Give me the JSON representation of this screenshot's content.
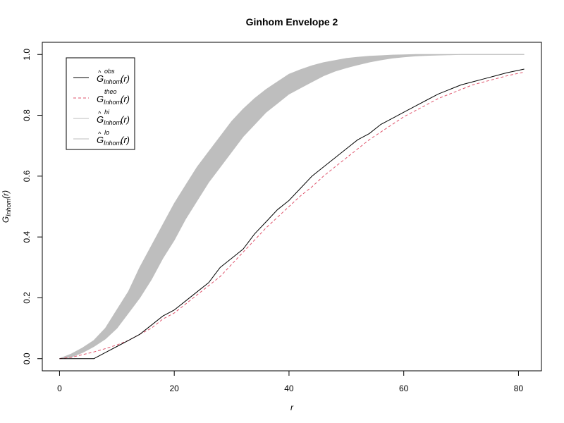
{
  "chart_data": {
    "type": "line",
    "title": "Ginhom Envelope 2",
    "xlabel": "r",
    "ylabel": {
      "base": "G",
      "sub": "Inhom",
      "arg": "(r)"
    },
    "xlim": [
      -3,
      84
    ],
    "ylim": [
      -0.04,
      1.04
    ],
    "x_ticks": [
      0,
      20,
      40,
      60,
      80
    ],
    "x_tick_labels": [
      "0",
      "20",
      "40",
      "60",
      "80"
    ],
    "y_ticks": [
      0.0,
      0.2,
      0.4,
      0.6,
      0.8,
      1.0
    ],
    "y_tick_labels": [
      "0.0",
      "0.2",
      "0.4",
      "0.6",
      "0.8",
      "1.0"
    ],
    "grid": false,
    "legend_position": "top-left",
    "colors": {
      "obs": "#000000",
      "theo": "#DF536B",
      "envelope": "#BEBEBE"
    },
    "legend": [
      {
        "base": "G",
        "hat": true,
        "sup": "obs",
        "sub": "Inhom",
        "arg": "(r)",
        "color": "#000000",
        "dash": false
      },
      {
        "base": "G",
        "hat": false,
        "sup": "theo",
        "sub": "Inhom",
        "arg": "(r)",
        "color": "#DF536B",
        "dash": true
      },
      {
        "base": "G",
        "hat": true,
        "sup": "hi",
        "sub": "Inhom",
        "arg": "(r)",
        "color": "#BEBEBE",
        "dash": false
      },
      {
        "base": "G",
        "hat": true,
        "sup": "lo",
        "sub": "Inhom",
        "arg": "(r)",
        "color": "#BEBEBE",
        "dash": false
      }
    ],
    "x": [
      0,
      2,
      4,
      6,
      8,
      10,
      12,
      14,
      16,
      18,
      20,
      22,
      24,
      26,
      28,
      30,
      32,
      34,
      36,
      38,
      40,
      42,
      44,
      46,
      48,
      50,
      52,
      54,
      56,
      58,
      60,
      62,
      64,
      66,
      68,
      70,
      72,
      74,
      76,
      78,
      80,
      81
    ],
    "series": [
      {
        "key": "obs",
        "values": [
          0,
          0,
          0,
          0,
          0.02,
          0.04,
          0.06,
          0.08,
          0.11,
          0.14,
          0.16,
          0.19,
          0.22,
          0.25,
          0.3,
          0.33,
          0.36,
          0.41,
          0.45,
          0.49,
          0.52,
          0.56,
          0.6,
          0.63,
          0.66,
          0.69,
          0.72,
          0.74,
          0.77,
          0.79,
          0.81,
          0.83,
          0.85,
          0.87,
          0.885,
          0.9,
          0.91,
          0.92,
          0.93,
          0.94,
          0.948,
          0.952
        ]
      },
      {
        "key": "theo",
        "values": [
          0,
          0.004,
          0.013,
          0.022,
          0.033,
          0.045,
          0.06,
          0.08,
          0.1,
          0.13,
          0.15,
          0.18,
          0.21,
          0.24,
          0.27,
          0.31,
          0.35,
          0.39,
          0.43,
          0.465,
          0.5,
          0.535,
          0.565,
          0.6,
          0.63,
          0.66,
          0.69,
          0.72,
          0.745,
          0.77,
          0.795,
          0.815,
          0.835,
          0.855,
          0.87,
          0.885,
          0.9,
          0.91,
          0.92,
          0.93,
          0.938,
          0.942
        ]
      },
      {
        "key": "hi",
        "values": [
          0,
          0.015,
          0.035,
          0.06,
          0.1,
          0.16,
          0.22,
          0.3,
          0.37,
          0.44,
          0.51,
          0.57,
          0.63,
          0.68,
          0.73,
          0.78,
          0.82,
          0.855,
          0.885,
          0.91,
          0.935,
          0.95,
          0.963,
          0.973,
          0.98,
          0.987,
          0.991,
          0.994,
          0.996,
          0.998,
          0.999,
          1,
          1,
          1,
          1,
          1,
          1,
          1,
          1,
          1,
          1,
          1
        ]
      },
      {
        "key": "lo",
        "values": [
          0,
          0.005,
          0.02,
          0.04,
          0.065,
          0.1,
          0.15,
          0.2,
          0.26,
          0.33,
          0.39,
          0.46,
          0.52,
          0.58,
          0.63,
          0.68,
          0.73,
          0.77,
          0.81,
          0.84,
          0.87,
          0.89,
          0.91,
          0.93,
          0.945,
          0.956,
          0.966,
          0.975,
          0.982,
          0.988,
          0.992,
          0.995,
          0.997,
          0.998,
          0.999,
          1,
          1,
          1,
          1,
          1,
          1,
          1
        ]
      }
    ]
  }
}
